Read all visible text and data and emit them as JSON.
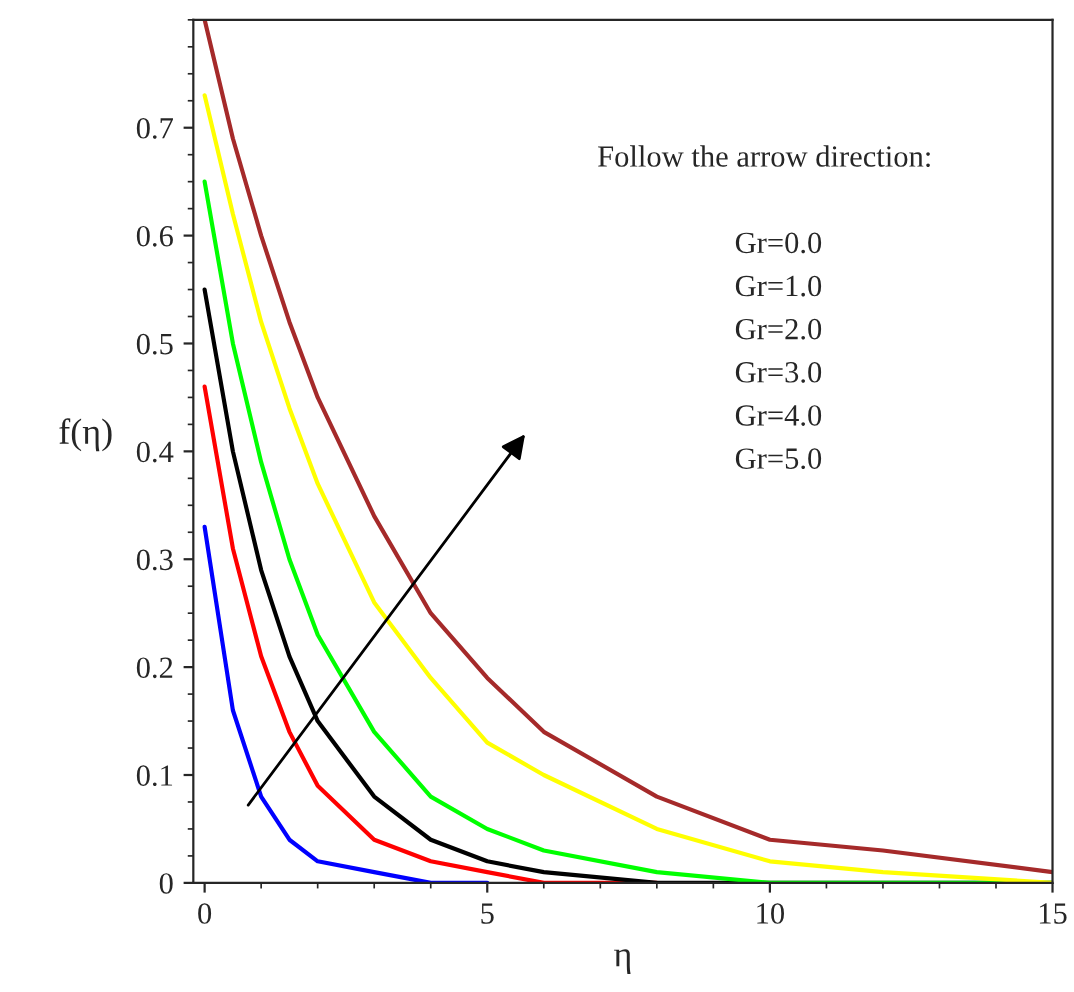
{
  "chart_data": {
    "type": "line",
    "xlabel": "η",
    "ylabel": "f(η)",
    "x": [
      0,
      0.5,
      1,
      1.5,
      2,
      3,
      4,
      5,
      6,
      8,
      10,
      12,
      15
    ],
    "series": [
      {
        "color": "#0000ff",
        "values": [
          0.33,
          0.16,
          0.08,
          0.04,
          0.02,
          0.01,
          0.0,
          0.0,
          null,
          null,
          null,
          null,
          null
        ]
      },
      {
        "color": "#ff0000",
        "values": [
          0.46,
          0.31,
          0.21,
          0.14,
          0.09,
          0.04,
          0.02,
          0.01,
          0.0,
          0.0,
          null,
          null,
          null
        ]
      },
      {
        "color": "#000000",
        "values": [
          0.55,
          0.4,
          0.29,
          0.21,
          0.15,
          0.08,
          0.04,
          0.02,
          0.01,
          0.0,
          0.0,
          0.0,
          0.0
        ]
      },
      {
        "color": "#00ff00",
        "values": [
          0.65,
          0.5,
          0.39,
          0.3,
          0.23,
          0.14,
          0.08,
          0.05,
          0.03,
          0.01,
          0.0,
          0.0,
          0.0
        ]
      },
      {
        "color": "#ffff00",
        "values": [
          0.73,
          0.62,
          0.52,
          0.44,
          0.37,
          0.26,
          0.19,
          0.13,
          0.1,
          0.05,
          0.02,
          0.01,
          0.0
        ]
      },
      {
        "color": "#a52a2a",
        "values": [
          0.8,
          0.69,
          0.6,
          0.52,
          0.45,
          0.34,
          0.25,
          0.19,
          0.14,
          0.08,
          0.04,
          0.03,
          0.01
        ]
      }
    ],
    "xlim": [
      -0.2,
      15
    ],
    "ylim": [
      0,
      0.8
    ],
    "xticks": [
      0,
      5,
      10,
      15
    ],
    "yticks": [
      0,
      0.1,
      0.2,
      0.3,
      0.4,
      0.5,
      0.6,
      0.7
    ],
    "grid": false,
    "legend": false,
    "marker": "none",
    "line_style": "solid",
    "annotations": [
      "Follow the arrow direction:",
      "Gr=0.0",
      "Gr=1.0",
      "Gr=2.0",
      "Gr=3.0",
      "Gr=4.0",
      "Gr=5.0"
    ]
  }
}
